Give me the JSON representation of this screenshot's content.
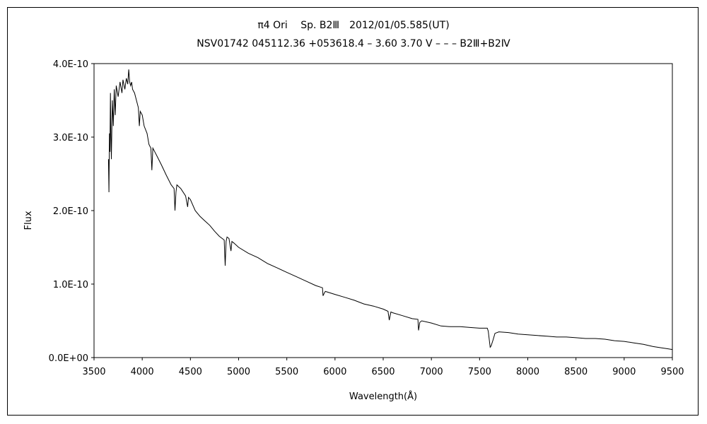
{
  "chart_data": {
    "type": "line",
    "title": "π4 Ori　 Sp. B2Ⅲ　2012/01/05.585(UT)",
    "subtitle": "NSV01742 045112.36 +053618.4 – 3.60 3.70 V – – – B2Ⅲ+B2Ⅳ",
    "xlabel": "Wavelength(Å)",
    "ylabel": "Flux",
    "xlim": [
      3500,
      9500
    ],
    "ylim": [
      0,
      4e-10
    ],
    "x_ticks": [
      3500,
      4000,
      4500,
      5000,
      5500,
      6000,
      6500,
      7000,
      7500,
      8000,
      8500,
      9000,
      9500
    ],
    "x_tick_labels": [
      "3500",
      "4000",
      "4500",
      "5000",
      "5500",
      "6000",
      "6500",
      "7000",
      "7500",
      "8000",
      "8500",
      "9000",
      "9500"
    ],
    "y_ticks": [
      0,
      1e-10,
      2e-10,
      3e-10,
      4e-10
    ],
    "y_tick_labels": [
      "0.0E+00",
      "1.0E-10",
      "2.0E-10",
      "3.0E-10",
      "4.0E-10"
    ],
    "grid": false,
    "legend": "none",
    "series": [
      {
        "color": "#000000",
        "x": [
          3650,
          3655,
          3660,
          3665,
          3670,
          3675,
          3680,
          3690,
          3700,
          3710,
          3720,
          3730,
          3750,
          3770,
          3790,
          3800,
          3820,
          3835,
          3850,
          3860,
          3870,
          3880,
          3890,
          3900,
          3920,
          3940,
          3960,
          3970,
          3980,
          4000,
          4020,
          4050,
          4070,
          4090,
          4100,
          4110,
          4130,
          4150,
          4200,
          4250,
          4300,
          4330,
          4340,
          4350,
          4360,
          4400,
          4450,
          4471,
          4480,
          4500,
          4550,
          4600,
          4650,
          4700,
          4750,
          4800,
          4850,
          4861,
          4870,
          4880,
          4900,
          4921,
          4930,
          4950,
          5000,
          5100,
          5200,
          5300,
          5400,
          5500,
          5600,
          5700,
          5800,
          5870,
          5876,
          5890,
          5900,
          6000,
          6100,
          6200,
          6300,
          6400,
          6500,
          6550,
          6563,
          6580,
          6600,
          6700,
          6800,
          6860,
          6867,
          6880,
          6900,
          7000,
          7100,
          7200,
          7300,
          7400,
          7500,
          7580,
          7590,
          7610,
          7620,
          7640,
          7660,
          7700,
          7800,
          7900,
          8000,
          8100,
          8200,
          8300,
          8400,
          8500,
          8600,
          8700,
          8800,
          8900,
          9000,
          9100,
          9200,
          9300,
          9400,
          9450,
          9500
        ],
        "y": [
          2.7e-10,
          2.25e-10,
          3.05e-10,
          2.8e-10,
          3.6e-10,
          3e-10,
          2.7e-10,
          3.5e-10,
          3.15e-10,
          3.65e-10,
          3.3e-10,
          3.7e-10,
          3.55e-10,
          3.75e-10,
          3.6e-10,
          3.78e-10,
          3.65e-10,
          3.8e-10,
          3.72e-10,
          3.92e-10,
          3.75e-10,
          3.7e-10,
          3.75e-10,
          3.65e-10,
          3.6e-10,
          3.5e-10,
          3.4e-10,
          3.15e-10,
          3.35e-10,
          3.3e-10,
          3.15e-10,
          3.05e-10,
          2.9e-10,
          2.85e-10,
          2.55e-10,
          2.85e-10,
          2.8e-10,
          2.75e-10,
          2.62e-10,
          2.48e-10,
          2.35e-10,
          2.3e-10,
          2e-10,
          2.25e-10,
          2.35e-10,
          2.3e-10,
          2.2e-10,
          2.05e-10,
          2.18e-10,
          2.15e-10,
          2e-10,
          1.92e-10,
          1.86e-10,
          1.8e-10,
          1.72e-10,
          1.65e-10,
          1.6e-10,
          1.25e-10,
          1.58e-10,
          1.64e-10,
          1.62e-10,
          1.45e-10,
          1.58e-10,
          1.56e-10,
          1.5e-10,
          1.42e-10,
          1.36e-10,
          1.28e-10,
          1.22e-10,
          1.16e-10,
          1.1e-10,
          1.04e-10,
          9.8e-11,
          9.5e-11,
          8.4e-11,
          8.8e-11,
          9e-11,
          8.6e-11,
          8.2e-11,
          7.8e-11,
          7.3e-11,
          7e-11,
          6.6e-11,
          6.3e-11,
          5.1e-11,
          6.2e-11,
          6.1e-11,
          5.7e-11,
          5.3e-11,
          5.2e-11,
          3.7e-11,
          4.8e-11,
          5e-11,
          4.7e-11,
          4.3e-11,
          4.2e-11,
          4.2e-11,
          4.1e-11,
          4e-11,
          4e-11,
          3.6e-11,
          1.4e-11,
          1.6e-11,
          2.4e-11,
          3.3e-11,
          3.5e-11,
          3.4e-11,
          3.2e-11,
          3.1e-11,
          3e-11,
          2.9e-11,
          2.8e-11,
          2.8e-11,
          2.7e-11,
          2.6e-11,
          2.6e-11,
          2.5e-11,
          2.3e-11,
          2.2e-11,
          2e-11,
          1.8e-11,
          1.5e-11,
          1.3e-11,
          1.2e-11,
          1.1e-11
        ]
      }
    ]
  }
}
